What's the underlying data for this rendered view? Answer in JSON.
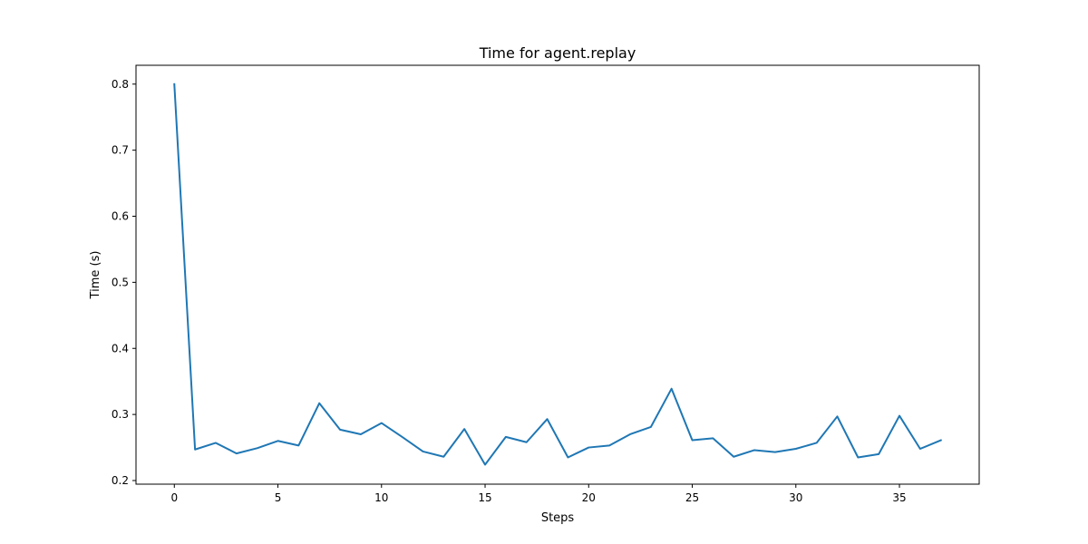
{
  "chart_data": {
    "type": "line",
    "title": "Time for agent.replay",
    "xlabel": "Steps",
    "ylabel": "Time (s)",
    "xlim": [
      -1.85,
      38.85
    ],
    "ylim": [
      0.1945,
      0.8285
    ],
    "xticks": [
      0,
      5,
      10,
      15,
      20,
      25,
      30,
      35
    ],
    "yticks": [
      0.2,
      0.3,
      0.4,
      0.5,
      0.6,
      0.7,
      0.8
    ],
    "grid": false,
    "legend": false,
    "colors": {
      "line": "#1f77b4",
      "axes": "#000000",
      "background": "#ffffff"
    },
    "series": [
      {
        "x": [
          0,
          1,
          2,
          3,
          4,
          5,
          6,
          7,
          8,
          9,
          10,
          11,
          12,
          13,
          14,
          15,
          16,
          17,
          18,
          19,
          20,
          21,
          22,
          23,
          24,
          25,
          26,
          27,
          28,
          29,
          30,
          31,
          32,
          33,
          34,
          35,
          36,
          37
        ],
        "values": [
          0.8,
          0.247,
          0.257,
          0.241,
          0.249,
          0.26,
          0.253,
          0.317,
          0.277,
          0.27,
          0.287,
          0.266,
          0.244,
          0.236,
          0.278,
          0.224,
          0.266,
          0.258,
          0.293,
          0.235,
          0.25,
          0.253,
          0.27,
          0.281,
          0.339,
          0.261,
          0.264,
          0.236,
          0.246,
          0.243,
          0.248,
          0.257,
          0.297,
          0.235,
          0.24,
          0.298,
          0.248,
          0.261
        ]
      }
    ]
  }
}
